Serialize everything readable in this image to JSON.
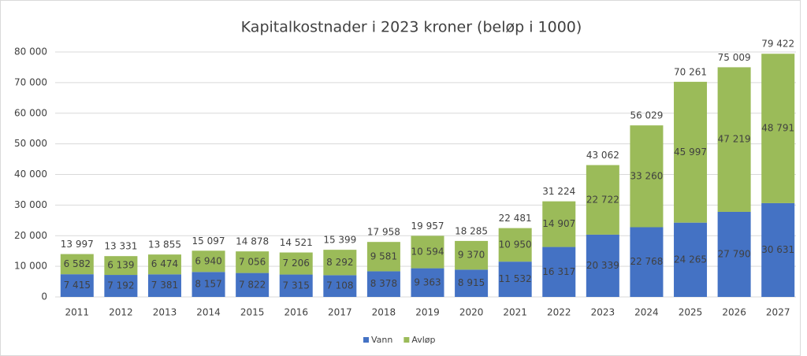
{
  "chart_data": {
    "type": "stacked_bar",
    "title": "Kapitalkostnader i 2023 kroner (beløp i 1000)",
    "categories": [
      "2011",
      "2012",
      "2013",
      "2014",
      "2015",
      "2016",
      "2017",
      "2018",
      "2019",
      "2020",
      "2021",
      "2022",
      "2023",
      "2024",
      "2025",
      "2026",
      "2027"
    ],
    "series": [
      {
        "name": "Vann",
        "color": "#4472c4",
        "values": [
          7415,
          7192,
          7381,
          8157,
          7822,
          7315,
          7108,
          8378,
          9363,
          8915,
          11532,
          16317,
          20339,
          22768,
          24265,
          27790,
          30631
        ],
        "value_labels": [
          "7 415",
          "7 192",
          "7 381",
          "8 157",
          "7 822",
          "7 315",
          "7 108",
          "8 378",
          "9 363",
          "8 915",
          "11 532",
          "16 317",
          "20 339",
          "22 768",
          "24 265",
          "27 790",
          "30 631"
        ]
      },
      {
        "name": "Avløp",
        "color": "#9bbb59",
        "values": [
          6582,
          6139,
          6474,
          6940,
          7056,
          7206,
          8292,
          9581,
          10594,
          9370,
          10950,
          14907,
          22722,
          33260,
          45997,
          47219,
          48791
        ],
        "value_labels": [
          "6 582",
          "6 139",
          "6 474",
          "6 940",
          "7 056",
          "7 206",
          "8 292",
          "9 581",
          "10 594",
          "9 370",
          "10 950",
          "14 907",
          "22 722",
          "33 260",
          "45 997",
          "47 219",
          "48 791"
        ]
      }
    ],
    "totals": {
      "values": [
        13997,
        13331,
        13855,
        15097,
        14878,
        14521,
        15399,
        17958,
        19957,
        18285,
        22481,
        31224,
        43062,
        56029,
        70261,
        75009,
        79422
      ],
      "value_labels": [
        "13 997",
        "13 331",
        "13 855",
        "15 097",
        "14 878",
        "14 521",
        "15 399",
        "17 958",
        "19 957",
        "18 285",
        "22 481",
        "31 224",
        "43 062",
        "56 029",
        "70 261",
        "75 009",
        "79 422"
      ]
    },
    "ylim": [
      0,
      80000
    ],
    "yticks": [
      0,
      {
        "value": 10000,
        "label": "10 000"
      },
      {
        "value": 20000,
        "label": "20 000"
      },
      {
        "value": 30000,
        "label": "30 000"
      },
      {
        "value": 40000,
        "label": "40 000"
      },
      {
        "value": 50000,
        "label": "50 000"
      },
      {
        "value": 60000,
        "label": "60 000"
      },
      {
        "value": 70000,
        "label": "70 000"
      },
      {
        "value": 80000,
        "label": "80 000"
      }
    ],
    "grid": true,
    "legend": "bottom"
  }
}
